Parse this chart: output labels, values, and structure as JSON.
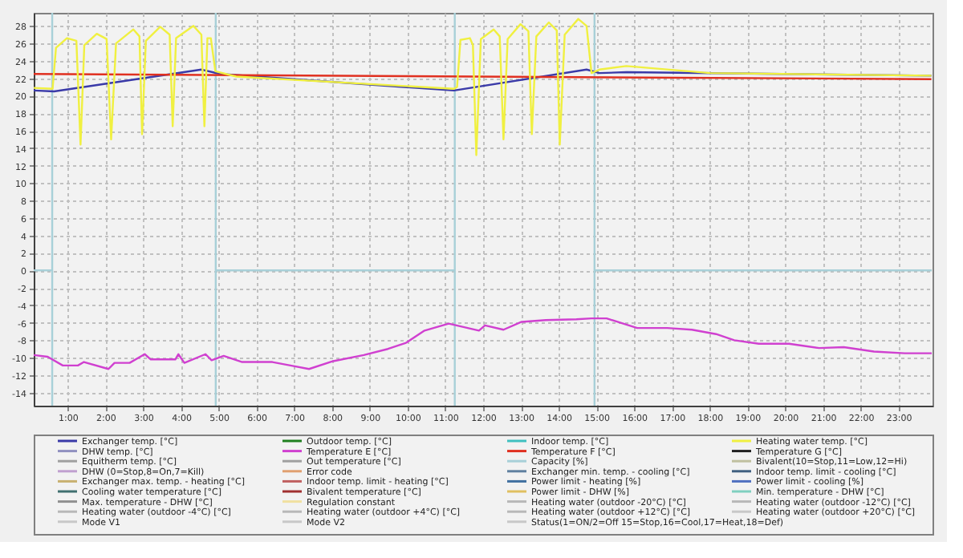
{
  "chart_data": {
    "type": "line",
    "xlim": [
      0.1,
      23.9
    ],
    "ylim": [
      -15.5,
      29.5
    ],
    "ref_lines": [
      {
        "axis": "x",
        "value": 0.59,
        "color": "#a8d0d8"
      },
      {
        "axis": "x",
        "value": 4.92,
        "color": "#a8d0d8"
      },
      {
        "axis": "x",
        "value": 11.25,
        "color": "#a8d0d8"
      },
      {
        "axis": "x",
        "value": 14.95,
        "color": "#a8d0d8"
      }
    ],
    "xticks": [
      {
        "value": 1,
        "label": "1:00"
      },
      {
        "value": 2,
        "label": "2:00"
      },
      {
        "value": 3,
        "label": "3:00"
      },
      {
        "value": 4,
        "label": "4:00"
      },
      {
        "value": 5,
        "label": "5:00"
      },
      {
        "value": 6,
        "label": "6:00"
      },
      {
        "value": 7,
        "label": "7:00"
      },
      {
        "value": 8,
        "label": "8:00"
      },
      {
        "value": 9,
        "label": "9:00"
      },
      {
        "value": 10,
        "label": "10:00"
      },
      {
        "value": 11,
        "label": "11:00"
      },
      {
        "value": 12,
        "label": "12:00"
      },
      {
        "value": 13,
        "label": "13:00"
      },
      {
        "value": 14,
        "label": "14:00"
      },
      {
        "value": 15,
        "label": "15:00"
      },
      {
        "value": 16,
        "label": "16:00"
      },
      {
        "value": 17,
        "label": "17:00"
      },
      {
        "value": 18,
        "label": "18:00"
      },
      {
        "value": 19,
        "label": "19:00"
      },
      {
        "value": 20,
        "label": "20:00"
      },
      {
        "value": 21,
        "label": "21:00"
      },
      {
        "value": 22,
        "label": "22:00"
      },
      {
        "value": 23,
        "label": "23:00"
      }
    ],
    "yticks": [
      -14,
      -12,
      -10,
      -8,
      -6,
      -4,
      -2,
      0,
      2,
      4,
      6,
      8,
      10,
      12,
      14,
      16,
      18,
      20,
      22,
      24,
      26,
      28
    ],
    "grid": true,
    "legend": "bottom",
    "series": [
      {
        "name": "Exchanger temp. [°C]",
        "color": "#3a3aa8",
        "x": [
          0.1,
          0.64,
          4.54,
          5.04,
          11.23,
          14.74,
          15.08,
          15.8,
          23.87
        ],
        "values": [
          20.6,
          20.5,
          23.0,
          22.5,
          20.6,
          23.0,
          22.6,
          22.7,
          22.3
        ]
      },
      {
        "name": "DHW temp. [°C]",
        "color": "#9090c0"
      },
      {
        "name": "Equitherm temp. [°C]",
        "color": "#a0a0a0"
      },
      {
        "name": "DHW (0=Stop,8=On,7=Kill)",
        "color": "#c0a0d0"
      },
      {
        "name": "Exchanger max. temp. - heating [°C]",
        "color": "#c8b070"
      },
      {
        "name": "Cooling water temperature [°C]",
        "color": "#407070"
      },
      {
        "name": "Max. temperature - DHW [°C]",
        "color": "#909090"
      },
      {
        "name": "Heating water (outdoor -4°C) [°C]",
        "color": "#b8b8b8"
      },
      {
        "name": "Mode V1",
        "color": "#c8c8c8"
      },
      {
        "name": "Outdoor temp. [°C]",
        "color": "#208020"
      },
      {
        "name": "Temperature E [°C]",
        "color": "#d040d0",
        "x": [
          0.1,
          0.47,
          0.87,
          1.27,
          1.43,
          2.08,
          2.24,
          2.64,
          3.04,
          3.2,
          3.85,
          3.93,
          4.09,
          4.65,
          4.81,
          5.13,
          5.62,
          6.42,
          6.9,
          7.39,
          8.03,
          8.84,
          9.48,
          9.96,
          10.45,
          11.09,
          11.89,
          12.05,
          12.54,
          13.02,
          13.66,
          14.47,
          14.87,
          15.27,
          16.08,
          16.88,
          17.53,
          18.17,
          18.65,
          19.3,
          20.1,
          20.9,
          21.55,
          22.35,
          23.16,
          23.88
        ],
        "values": [
          -9.7,
          -9.9,
          -10.9,
          -10.9,
          -10.5,
          -11.3,
          -10.6,
          -10.6,
          -9.6,
          -10.2,
          -10.2,
          -9.6,
          -10.6,
          -9.6,
          -10.3,
          -9.8,
          -10.5,
          -10.5,
          -10.9,
          -11.3,
          -10.4,
          -9.7,
          -9.0,
          -8.3,
          -6.9,
          -6.1,
          -6.9,
          -6.3,
          -6.8,
          -5.9,
          -5.7,
          -5.6,
          -5.5,
          -5.5,
          -6.6,
          -6.6,
          -6.8,
          -7.3,
          -8.0,
          -8.4,
          -8.4,
          -8.9,
          -8.8,
          -9.3,
          -9.5,
          -9.5
        ]
      },
      {
        "name": "Out temperature [°C]",
        "color": "#a0a0a0"
      },
      {
        "name": "Error code",
        "color": "#e0a070"
      },
      {
        "name": "Indoor temp. limit - heating [°C]",
        "color": "#c06060"
      },
      {
        "name": "Bivalent temperature [°C]",
        "color": "#a03030"
      },
      {
        "name": "Regulation constant",
        "color": "#f0e0a0"
      },
      {
        "name": "Heating water (outdoor +4°C) [°C]",
        "color": "#b8b8b8"
      },
      {
        "name": "Mode V2",
        "color": "#c8c8c8"
      },
      {
        "name": "Indoor temp. [°C]",
        "color": "#40c0c0"
      },
      {
        "name": "Temperature F [°C]",
        "color": "#e03020",
        "x": [
          0.1,
          23.87
        ],
        "values": [
          22.5,
          21.9
        ]
      },
      {
        "name": "Capacity [%]",
        "color": "#a8d0d8",
        "type": "step",
        "x": [
          0.1,
          0.59,
          4.92,
          11.25,
          14.95,
          23.88
        ],
        "values": [
          0,
          null,
          0,
          null,
          0,
          0
        ]
      },
      {
        "name": "Exchanger min. temp. - cooling [°C]",
        "color": "#6080a0"
      },
      {
        "name": "Power limit - heating [%]",
        "color": "#4070a0"
      },
      {
        "name": "Power limit - DHW [%]",
        "color": "#e0c060"
      },
      {
        "name": "Heating water (outdoor -20°C) [°C]",
        "color": "#b8b8b8"
      },
      {
        "name": "Heating water (outdoor +12°C) [°C]",
        "color": "#b8b8b8"
      },
      {
        "name": "Status(1=ON/2=Off 15=Stop,16=Cool,17=Heat,18=Def)",
        "color": "#c8c8c8"
      },
      {
        "name": "Heating water temp. [°C]",
        "color": "#f0f040",
        "x": [
          0.1,
          0.6,
          0.69,
          0.98,
          1.23,
          1.34,
          1.44,
          1.77,
          2.03,
          2.15,
          2.28,
          2.74,
          2.9,
          2.97,
          3.07,
          3.45,
          3.7,
          3.78,
          3.87,
          4.33,
          4.54,
          4.62,
          4.7,
          4.79,
          4.91,
          5.46,
          11.23,
          11.31,
          11.4,
          11.65,
          11.73,
          11.82,
          11.94,
          12.28,
          12.44,
          12.54,
          12.65,
          12.99,
          13.2,
          13.29,
          13.41,
          13.74,
          13.95,
          14.03,
          14.16,
          14.52,
          14.74,
          14.87,
          15.08,
          15.79,
          18.01,
          23.87
        ],
        "values": [
          20.9,
          20.8,
          25.5,
          26.6,
          26.3,
          14.4,
          25.8,
          27.1,
          26.5,
          15.0,
          26.0,
          27.6,
          26.8,
          15.6,
          26.3,
          27.9,
          27.0,
          16.5,
          26.6,
          28.0,
          27.0,
          16.5,
          26.6,
          26.6,
          22.8,
          22.2,
          20.8,
          21.0,
          26.4,
          26.6,
          25.8,
          13.2,
          26.5,
          27.6,
          26.8,
          15.0,
          26.5,
          28.2,
          27.4,
          15.6,
          26.8,
          28.4,
          27.5,
          14.4,
          27.0,
          28.8,
          28.0,
          22.6,
          23.0,
          23.4,
          22.6,
          22.3
        ]
      },
      {
        "name": "Temperature G [°C]",
        "color": "#202020"
      },
      {
        "name": "Bivalent(10=Stop,11=Low,12=Hi)",
        "color": "#c0c0a0"
      },
      {
        "name": "Indoor temp. limit - cooling [°C]",
        "color": "#406080"
      },
      {
        "name": "Power limit - cooling [%]",
        "color": "#5070c0"
      },
      {
        "name": "Min. temperature - DHW [°C]",
        "color": "#80d0c0"
      },
      {
        "name": "Heating water (outdoor -12°C) [°C]",
        "color": "#b8b8b8"
      },
      {
        "name": "Heating water (outdoor +20°C) [°C]",
        "color": "#c8c8c8"
      }
    ]
  }
}
